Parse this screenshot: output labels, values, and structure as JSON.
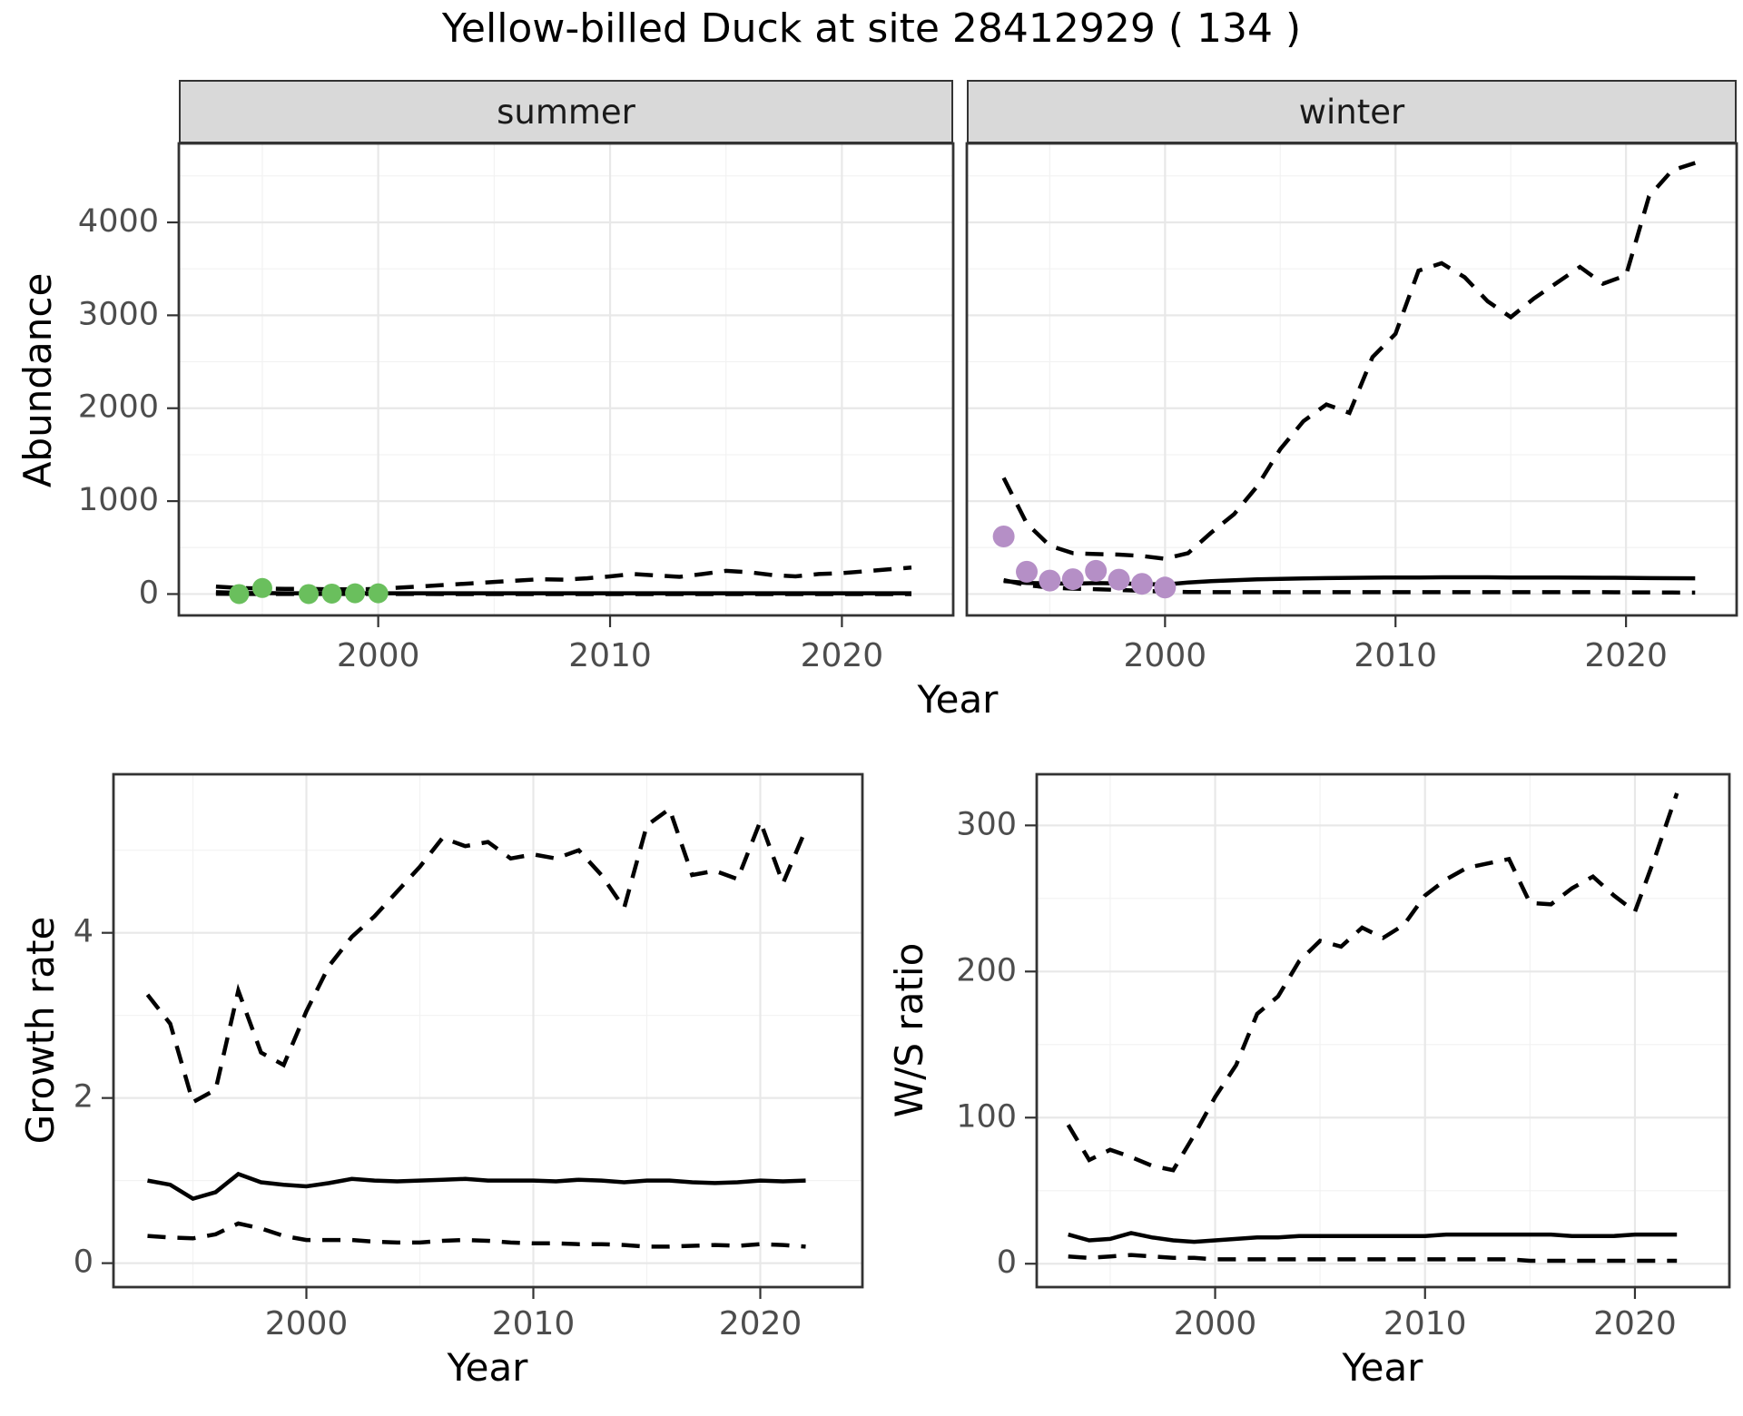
{
  "title": "Yellow-billed Duck at site 28412929 ( 134 )",
  "axis_titles": {
    "abundance": "Abundance",
    "year": "Year",
    "growth": "Growth rate",
    "ws": "W/S ratio"
  },
  "colors": {
    "summer_point": "#6abf5d",
    "winter_point": "#b58fc6",
    "line": "#000000",
    "grid_major": "#e8e8e8",
    "grid_minor": "#f2f2f2",
    "strip_bg": "#d9d9d9",
    "panel_border": "#333333",
    "tick_label": "#4d4d4d"
  },
  "chart_data": [
    {
      "id": "abundance-summer",
      "type": "line",
      "facet_label": "summer",
      "xlabel": "Year",
      "ylabel": "Abundance",
      "xlim": [
        1991.4,
        2024.8
      ],
      "ylim": [
        -230,
        4850
      ],
      "x_ticks": [
        2000,
        2010,
        2020
      ],
      "x_minor": [
        1995,
        2005,
        2015
      ],
      "y_ticks": [
        0,
        1000,
        2000,
        3000,
        4000
      ],
      "y_minor": [
        500,
        1500,
        2500,
        3500,
        4500
      ],
      "years": [
        1993,
        1994,
        1995,
        1996,
        1997,
        1998,
        1999,
        2000,
        2001,
        2002,
        2003,
        2004,
        2005,
        2006,
        2007,
        2008,
        2009,
        2010,
        2011,
        2012,
        2013,
        2014,
        2015,
        2016,
        2017,
        2018,
        2019,
        2020,
        2021,
        2022,
        2023
      ],
      "series": [
        {
          "name": "upper_ci",
          "style": "dashed",
          "values": [
            80,
            65,
            60,
            55,
            55,
            50,
            50,
            55,
            70,
            85,
            100,
            115,
            130,
            145,
            160,
            155,
            170,
            190,
            215,
            200,
            185,
            215,
            250,
            235,
            205,
            190,
            215,
            225,
            245,
            265,
            285
          ]
        },
        {
          "name": "median",
          "style": "solid",
          "values": [
            20,
            12,
            10,
            8,
            8,
            8,
            8,
            8,
            8,
            8,
            8,
            8,
            8,
            8,
            8,
            8,
            8,
            8,
            8,
            8,
            8,
            8,
            8,
            8,
            8,
            8,
            8,
            8,
            8,
            8,
            8
          ]
        },
        {
          "name": "lower_ci",
          "style": "dashed",
          "values": [
            3,
            2,
            1,
            1,
            1,
            1,
            1,
            1,
            1,
            1,
            0,
            0,
            0,
            0,
            0,
            0,
            0,
            0,
            0,
            0,
            0,
            0,
            0,
            0,
            0,
            0,
            0,
            0,
            0,
            0,
            0
          ]
        }
      ],
      "observed_points": {
        "color_key": "summer_point",
        "years": [
          1994,
          1995,
          1997,
          1998,
          1999,
          2000
        ],
        "values": [
          0,
          65,
          0,
          5,
          8,
          8
        ]
      }
    },
    {
      "id": "abundance-winter",
      "type": "line",
      "facet_label": "winter",
      "xlabel": "Year",
      "ylabel": "Abundance",
      "xlim": [
        1991.4,
        2024.8
      ],
      "ylim": [
        -230,
        4850
      ],
      "x_ticks": [
        2000,
        2010,
        2020
      ],
      "x_minor": [
        1995,
        2005,
        2015
      ],
      "y_ticks": [
        0,
        1000,
        2000,
        3000,
        4000
      ],
      "y_minor": [
        500,
        1500,
        2500,
        3500,
        4500
      ],
      "years": [
        1993,
        1994,
        1995,
        1996,
        1997,
        1998,
        1999,
        2000,
        2001,
        2002,
        2003,
        2004,
        2005,
        2006,
        2007,
        2008,
        2009,
        2010,
        2011,
        2012,
        2013,
        2014,
        2015,
        2016,
        2017,
        2018,
        2019,
        2020,
        2021,
        2022,
        2023
      ],
      "series": [
        {
          "name": "upper_ci",
          "style": "dashed",
          "values": [
            1250,
            760,
            520,
            440,
            430,
            425,
            410,
            380,
            440,
            660,
            860,
            1160,
            1560,
            1860,
            2040,
            1950,
            2550,
            2800,
            3480,
            3560,
            3410,
            3150,
            2980,
            3180,
            3350,
            3520,
            3340,
            3430,
            4280,
            4560,
            4640
          ]
        },
        {
          "name": "median",
          "style": "solid",
          "values": [
            140,
            120,
            115,
            112,
            118,
            114,
            108,
            102,
            125,
            138,
            148,
            158,
            164,
            168,
            172,
            174,
            176,
            178,
            178,
            180,
            180,
            180,
            178,
            178,
            177,
            176,
            175,
            174,
            172,
            171,
            170
          ]
        },
        {
          "name": "lower_ci",
          "style": "dashed",
          "values": [
            150,
            95,
            70,
            58,
            52,
            44,
            36,
            26,
            22,
            20,
            20,
            20,
            20,
            20,
            20,
            20,
            20,
            20,
            20,
            20,
            20,
            20,
            20,
            20,
            20,
            20,
            20,
            18,
            18,
            16,
            15
          ]
        }
      ],
      "observed_points": {
        "color_key": "winter_point",
        "years": [
          1993,
          1994,
          1995,
          1996,
          1997,
          1998,
          1999,
          2000
        ],
        "values": [
          620,
          240,
          145,
          160,
          250,
          155,
          110,
          70
        ]
      }
    },
    {
      "id": "growth-rate",
      "type": "line",
      "facet_label": null,
      "xlabel": "Year",
      "ylabel": "Growth rate",
      "xlim": [
        1991.5,
        2024.5
      ],
      "ylim": [
        -0.29,
        5.92
      ],
      "x_ticks": [
        2000,
        2010,
        2020
      ],
      "x_minor": [
        1995,
        2005,
        2015
      ],
      "y_ticks": [
        0,
        2,
        4
      ],
      "y_minor": [
        1,
        3,
        5
      ],
      "years": [
        1993,
        1994,
        1995,
        1996,
        1997,
        1998,
        1999,
        2000,
        2001,
        2002,
        2003,
        2004,
        2005,
        2006,
        2007,
        2008,
        2009,
        2010,
        2011,
        2012,
        2013,
        2014,
        2015,
        2016,
        2017,
        2018,
        2019,
        2020,
        2021,
        2022
      ],
      "series": [
        {
          "name": "upper_ci",
          "style": "dashed",
          "values": [
            3.25,
            2.9,
            1.95,
            2.1,
            3.3,
            2.55,
            2.4,
            3.05,
            3.6,
            3.95,
            4.2,
            4.5,
            4.8,
            5.15,
            5.05,
            5.1,
            4.9,
            4.95,
            4.9,
            5.0,
            4.7,
            4.3,
            5.3,
            5.5,
            4.7,
            4.75,
            4.65,
            5.35,
            4.6,
            5.25
          ]
        },
        {
          "name": "median",
          "style": "solid",
          "values": [
            1.0,
            0.95,
            0.78,
            0.86,
            1.08,
            0.98,
            0.95,
            0.93,
            0.97,
            1.02,
            1.0,
            0.99,
            1.0,
            1.01,
            1.02,
            1.0,
            1.0,
            1.0,
            0.99,
            1.01,
            1.0,
            0.98,
            1.0,
            1.0,
            0.98,
            0.97,
            0.98,
            1.0,
            0.99,
            1.0
          ]
        },
        {
          "name": "lower_ci",
          "style": "dashed",
          "values": [
            0.33,
            0.31,
            0.3,
            0.35,
            0.48,
            0.42,
            0.33,
            0.28,
            0.28,
            0.28,
            0.26,
            0.25,
            0.25,
            0.27,
            0.28,
            0.27,
            0.25,
            0.24,
            0.24,
            0.23,
            0.23,
            0.22,
            0.2,
            0.2,
            0.21,
            0.22,
            0.21,
            0.23,
            0.22,
            0.2
          ]
        }
      ],
      "observed_points": null
    },
    {
      "id": "ws-ratio",
      "type": "line",
      "facet_label": null,
      "xlabel": "Year",
      "ylabel": "W/S ratio",
      "xlim": [
        1991.5,
        2024.5
      ],
      "ylim": [
        -16,
        335
      ],
      "x_ticks": [
        2000,
        2010,
        2020
      ],
      "x_minor": [
        1995,
        2005,
        2015
      ],
      "y_ticks": [
        0,
        100,
        200,
        300
      ],
      "y_minor": [
        50,
        150,
        250
      ],
      "years": [
        1993,
        1994,
        1995,
        1996,
        1997,
        1998,
        1999,
        2000,
        2001,
        2002,
        2003,
        2004,
        2005,
        2006,
        2007,
        2008,
        2009,
        2010,
        2011,
        2012,
        2013,
        2014,
        2015,
        2016,
        2017,
        2018,
        2019,
        2020,
        2021,
        2022
      ],
      "series": [
        {
          "name": "upper_ci",
          "style": "dashed",
          "values": [
            95,
            71,
            78,
            73,
            67,
            64,
            88,
            114,
            136,
            171,
            183,
            207,
            221,
            217,
            230,
            223,
            232,
            252,
            263,
            271,
            274,
            277,
            247,
            246,
            257,
            265,
            252,
            241,
            280,
            322
          ]
        },
        {
          "name": "median",
          "style": "solid",
          "values": [
            20,
            16,
            17,
            21,
            18,
            16,
            15,
            16,
            17,
            18,
            18,
            19,
            19,
            19,
            19,
            19,
            19,
            19,
            20,
            20,
            20,
            20,
            20,
            20,
            19,
            19,
            19,
            20,
            20,
            20
          ]
        },
        {
          "name": "lower_ci",
          "style": "dashed",
          "values": [
            5,
            4,
            5,
            6,
            5,
            4,
            4,
            3,
            3,
            3,
            3,
            3,
            3,
            3,
            3,
            3,
            3,
            3,
            3,
            3,
            3,
            3,
            2,
            2,
            2,
            2,
            2,
            2,
            2,
            2
          ]
        }
      ],
      "observed_points": null
    }
  ]
}
